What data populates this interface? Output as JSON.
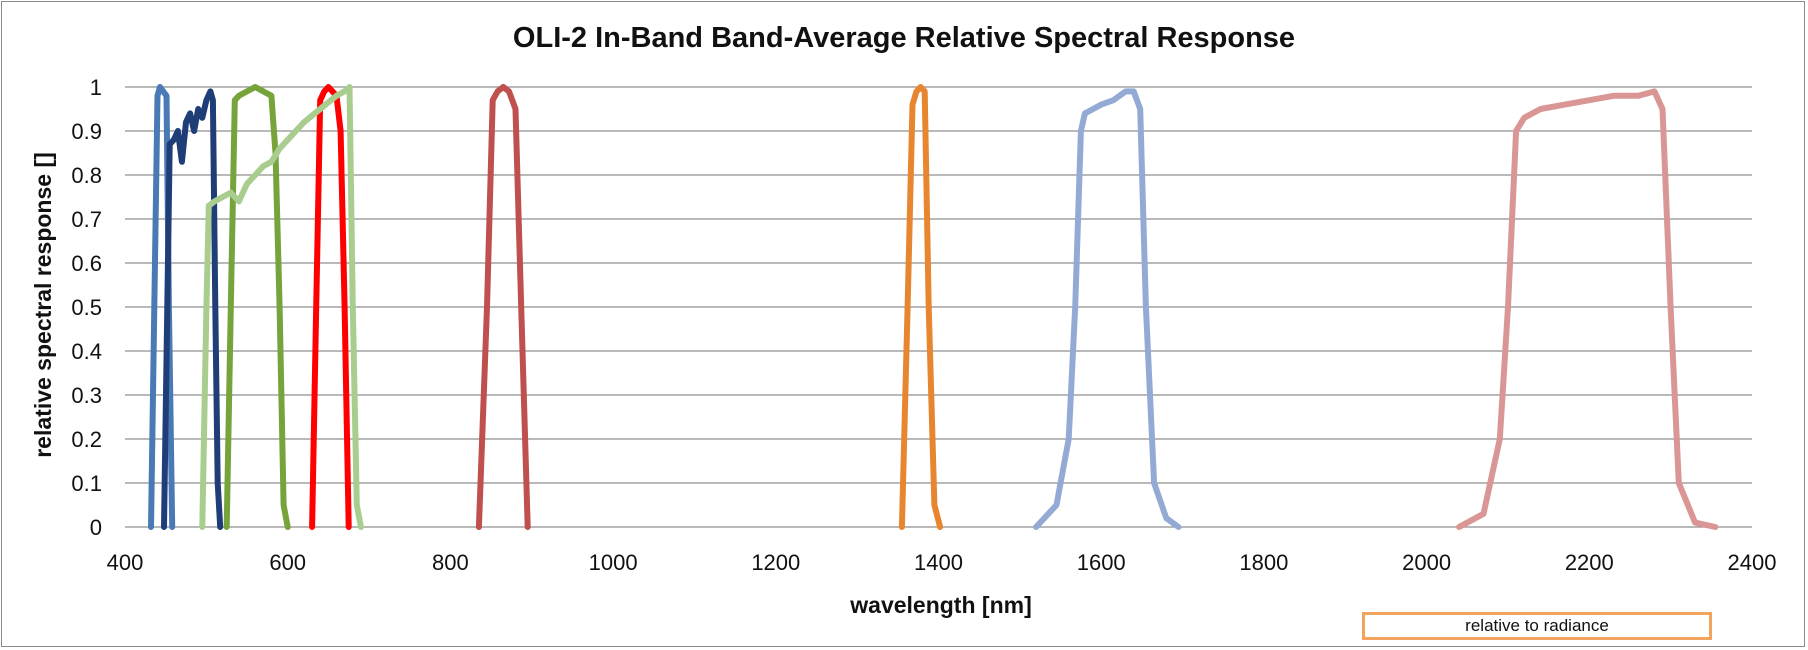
{
  "chart_data": {
    "type": "line",
    "title": "OLI-2 In-Band Band-Average Relative Spectral Response",
    "xlabel": "wavelength [nm]",
    "ylabel": "relative spectral response []",
    "xlim": [
      400,
      2400
    ],
    "ylim": [
      0,
      1
    ],
    "xticks": [
      400,
      600,
      800,
      1000,
      1200,
      1400,
      1600,
      1800,
      2000,
      2200,
      2400
    ],
    "yticks": [
      0,
      0.1,
      0.2,
      0.3,
      0.4,
      0.5,
      0.6,
      0.7,
      0.8,
      0.9,
      1
    ],
    "grid": "horizontal",
    "annotation": "relative to radiance",
    "series": [
      {
        "color": "#4a7ab5",
        "x": [
          432,
          436,
          440,
          443,
          447,
          451,
          454,
          458
        ],
        "y": [
          0,
          0.5,
          0.98,
          1.0,
          0.99,
          0.98,
          0.5,
          0
        ]
      },
      {
        "color": "#1f3e78",
        "x": [
          448,
          452,
          455,
          460,
          465,
          470,
          475,
          480,
          485,
          490,
          495,
          500,
          505,
          508,
          511,
          514,
          517
        ],
        "y": [
          0,
          0.5,
          0.87,
          0.88,
          0.9,
          0.83,
          0.92,
          0.94,
          0.9,
          0.95,
          0.93,
          0.97,
          0.99,
          0.97,
          0.5,
          0.1,
          0
        ]
      },
      {
        "color": "#76a33a",
        "x": [
          525,
          530,
          535,
          540,
          550,
          560,
          570,
          580,
          585,
          590,
          595,
          600
        ],
        "y": [
          0,
          0.5,
          0.97,
          0.98,
          0.99,
          1.0,
          0.99,
          0.98,
          0.85,
          0.5,
          0.05,
          0
        ]
      },
      {
        "color": "#ff0000",
        "x": [
          630,
          635,
          640,
          645,
          650,
          655,
          660,
          665,
          670,
          675
        ],
        "y": [
          0,
          0.5,
          0.97,
          0.99,
          1.0,
          0.99,
          0.98,
          0.9,
          0.5,
          0
        ]
      },
      {
        "color": "#a9cd8f",
        "x": [
          495,
          500,
          503,
          510,
          520,
          530,
          540,
          550,
          560,
          570,
          580,
          590,
          600,
          620,
          640,
          660,
          670,
          676,
          680,
          685,
          690
        ],
        "y": [
          0,
          0.5,
          0.73,
          0.74,
          0.75,
          0.76,
          0.74,
          0.78,
          0.8,
          0.82,
          0.83,
          0.86,
          0.88,
          0.92,
          0.95,
          0.98,
          0.99,
          1.0,
          0.5,
          0.05,
          0
        ]
      },
      {
        "color": "#c0504d",
        "x": [
          835,
          845,
          852,
          858,
          865,
          872,
          880,
          887,
          895
        ],
        "y": [
          0,
          0.5,
          0.97,
          0.99,
          1.0,
          0.99,
          0.95,
          0.5,
          0
        ]
      },
      {
        "color": "#e8862f",
        "x": [
          1355,
          1362,
          1368,
          1373,
          1378,
          1383,
          1388,
          1395,
          1402
        ],
        "y": [
          0,
          0.5,
          0.96,
          0.99,
          1.0,
          0.99,
          0.5,
          0.05,
          0
        ]
      },
      {
        "color": "#93abd4",
        "x": [
          1520,
          1545,
          1560,
          1568,
          1575,
          1580,
          1590,
          1600,
          1615,
          1630,
          1640,
          1648,
          1655,
          1665,
          1680,
          1695
        ],
        "y": [
          0,
          0.05,
          0.2,
          0.5,
          0.9,
          0.94,
          0.95,
          0.96,
          0.97,
          0.99,
          0.99,
          0.95,
          0.5,
          0.1,
          0.02,
          0
        ]
      },
      {
        "color": "#d99694",
        "x": [
          2040,
          2070,
          2090,
          2100,
          2110,
          2120,
          2140,
          2170,
          2200,
          2230,
          2260,
          2280,
          2290,
          2300,
          2310,
          2330,
          2355
        ],
        "y": [
          0,
          0.03,
          0.2,
          0.5,
          0.9,
          0.93,
          0.95,
          0.96,
          0.97,
          0.98,
          0.98,
          0.99,
          0.95,
          0.5,
          0.1,
          0.01,
          0
        ]
      }
    ]
  }
}
